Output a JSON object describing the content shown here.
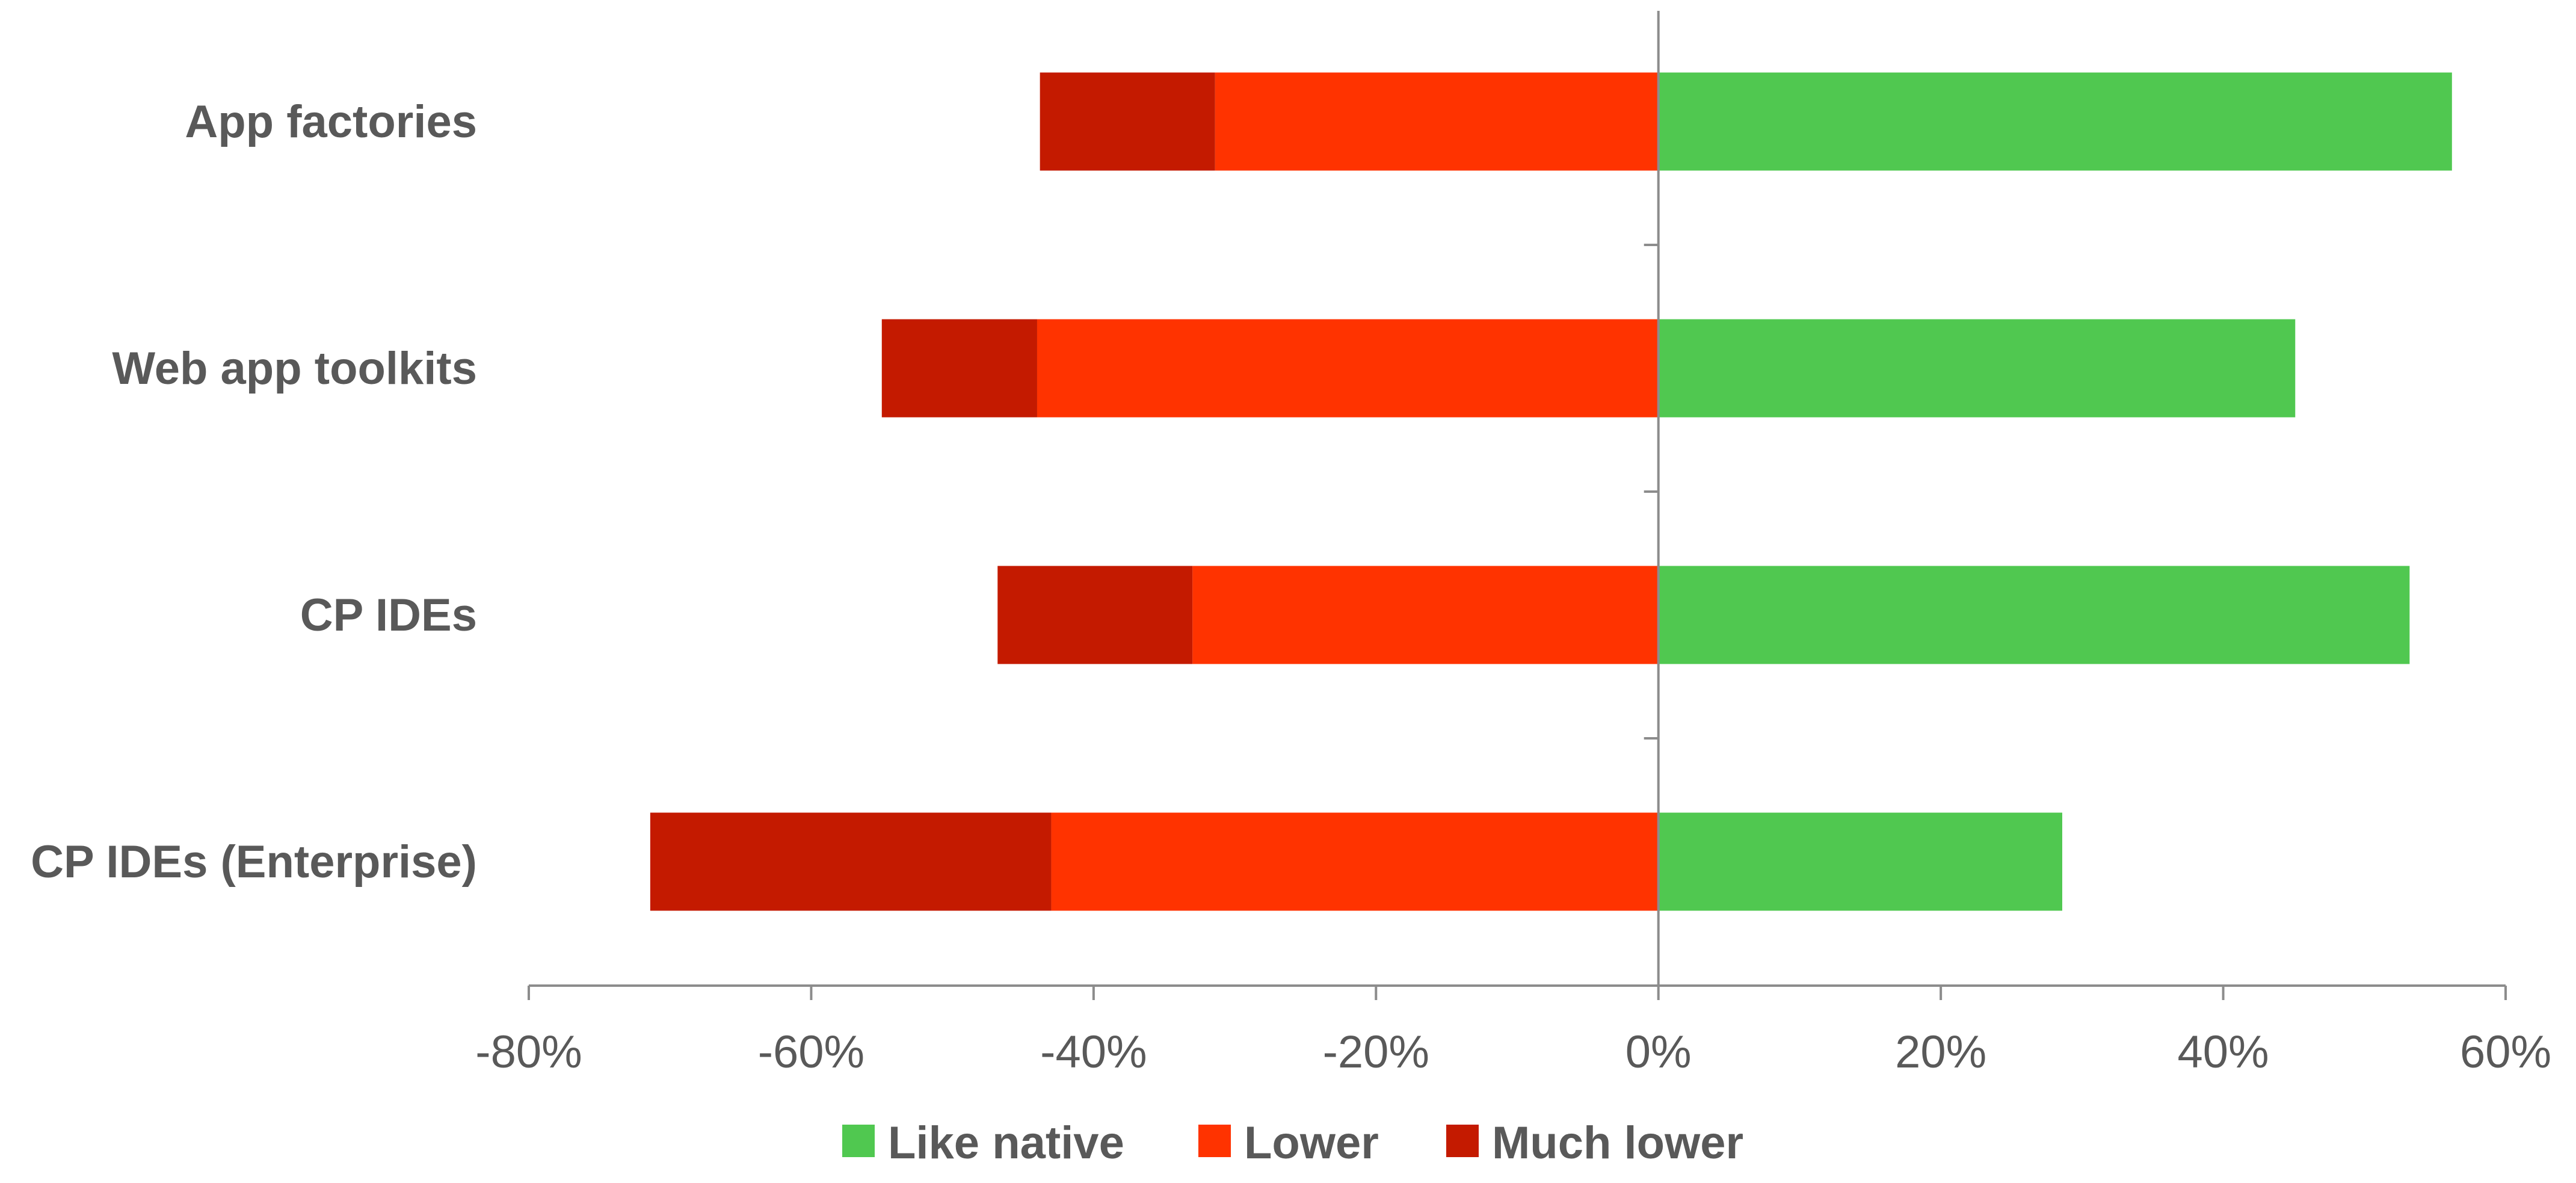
{
  "chart_data": {
    "type": "bar",
    "orientation": "horizontal",
    "stacked": "diverging",
    "categories": [
      "App factories",
      "Web app toolkits",
      "CP IDEs",
      "CP IDEs (Enterprise)"
    ],
    "series": [
      {
        "name": "Like native",
        "color": "#50C850",
        "values": [
          56.2,
          45.1,
          53.2,
          28.6
        ]
      },
      {
        "name": "Lower",
        "color": "#FF3300",
        "values": [
          -31.4,
          -44.0,
          -33.0,
          -43.0
        ]
      },
      {
        "name": "Much lower",
        "color": "#C41A00",
        "values": [
          -12.4,
          -11.0,
          -13.8,
          -28.4
        ]
      }
    ],
    "x_ticks": [
      "-80%",
      "-60%",
      "-40%",
      "-20%",
      "0%",
      "20%",
      "40%",
      "60%"
    ],
    "xlim": [
      -80,
      60
    ],
    "grid": false,
    "legend": "bottom"
  }
}
